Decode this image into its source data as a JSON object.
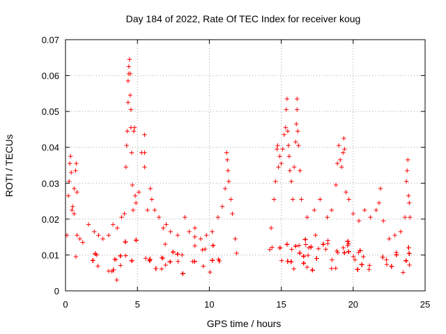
{
  "chart_data": {
    "type": "scatter",
    "title": "Day 184 of 2022, Rate Of TEC Index for receiver koug",
    "xlabel": "GPS time / hours",
    "ylabel": "ROTI / TECUs",
    "xlim": [
      0,
      25
    ],
    "ylim": [
      0,
      0.07
    ],
    "x_ticks": [
      "0",
      "5",
      "10",
      "15",
      "20",
      "25"
    ],
    "y_ticks": [
      "0",
      "0.01",
      "0.02",
      "0.03",
      "0.04",
      "0.05",
      "0.06",
      "0.07"
    ],
    "grid": true,
    "marker": "+",
    "color": "#ff0000",
    "data_gap_hours": [
      12.0,
      14.2
    ],
    "series": [
      {
        "points": [
          [
            0.1,
            0.0155
          ],
          [
            0.2,
            0.0265
          ],
          [
            0.25,
            0.0305
          ],
          [
            0.3,
            0.0355
          ],
          [
            0.35,
            0.0375
          ],
          [
            0.4,
            0.033
          ],
          [
            0.45,
            0.0225
          ],
          [
            0.5,
            0.0235
          ],
          [
            0.6,
            0.0215
          ],
          [
            0.6,
            0.0285
          ],
          [
            0.7,
            0.0335
          ],
          [
            0.75,
            0.0355
          ],
          [
            0.8,
            0.0275
          ],
          [
            0.8,
            0.0155
          ],
          [
            1.0,
            0.0145
          ],
          [
            1.2,
            0.0135
          ],
          [
            1.6,
            0.0185
          ],
          [
            2.0,
            0.0165
          ],
          [
            2.3,
            0.0155
          ],
          [
            2.6,
            0.0145
          ],
          [
            3.0,
            0.0155
          ],
          [
            3.3,
            0.0185
          ],
          [
            3.6,
            0.0175
          ],
          [
            3.9,
            0.0205
          ],
          [
            4.1,
            0.0215
          ],
          [
            4.2,
            0.0345
          ],
          [
            4.25,
            0.0405
          ],
          [
            4.3,
            0.0445
          ],
          [
            4.35,
            0.0525
          ],
          [
            4.35,
            0.0585
          ],
          [
            4.4,
            0.0605
          ],
          [
            4.4,
            0.0625
          ],
          [
            4.45,
            0.0645
          ],
          [
            4.5,
            0.0605
          ],
          [
            4.5,
            0.0545
          ],
          [
            4.55,
            0.0505
          ],
          [
            4.55,
            0.0455
          ],
          [
            4.6,
            0.0385
          ],
          [
            4.65,
            0.0295
          ],
          [
            4.7,
            0.0225
          ],
          [
            4.75,
            0.0445
          ],
          [
            4.8,
            0.0455
          ],
          [
            4.85,
            0.0265
          ],
          [
            4.9,
            0.0245
          ],
          [
            5.1,
            0.0275
          ],
          [
            5.3,
            0.0385
          ],
          [
            5.5,
            0.0385
          ],
          [
            5.5,
            0.0435
          ],
          [
            5.5,
            0.0345
          ],
          [
            5.7,
            0.0225
          ],
          [
            5.9,
            0.0285
          ],
          [
            6.0,
            0.0255
          ],
          [
            6.2,
            0.0225
          ],
          [
            6.5,
            0.0205
          ],
          [
            6.8,
            0.0175
          ],
          [
            7.0,
            0.0185
          ],
          [
            7.3,
            0.0165
          ],
          [
            7.8,
            0.0155
          ],
          [
            8.3,
            0.0205
          ],
          [
            8.6,
            0.0165
          ],
          [
            9.0,
            0.0175
          ],
          [
            9.4,
            0.0145
          ],
          [
            9.8,
            0.0155
          ],
          [
            10.2,
            0.0165
          ],
          [
            10.6,
            0.0205
          ],
          [
            10.9,
            0.0235
          ],
          [
            11.1,
            0.0285
          ],
          [
            11.2,
            0.0385
          ],
          [
            11.25,
            0.0365
          ],
          [
            11.3,
            0.0335
          ],
          [
            11.35,
            0.0305
          ],
          [
            11.5,
            0.0255
          ],
          [
            11.6,
            0.0215
          ],
          [
            11.8,
            0.0145
          ],
          [
            11.9,
            0.0105
          ],
          [
            14.2,
            0.0115
          ],
          [
            14.3,
            0.0175
          ],
          [
            14.5,
            0.0255
          ],
          [
            14.6,
            0.0305
          ],
          [
            14.7,
            0.0395
          ],
          [
            14.75,
            0.0405
          ],
          [
            14.8,
            0.0345
          ],
          [
            14.9,
            0.0375
          ],
          [
            15.0,
            0.0355
          ],
          [
            15.1,
            0.0395
          ],
          [
            15.2,
            0.0435
          ],
          [
            15.3,
            0.0455
          ],
          [
            15.35,
            0.0505
          ],
          [
            15.4,
            0.0535
          ],
          [
            15.45,
            0.0445
          ],
          [
            15.5,
            0.0405
          ],
          [
            15.55,
            0.0375
          ],
          [
            15.6,
            0.0335
          ],
          [
            15.7,
            0.0305
          ],
          [
            15.8,
            0.0255
          ],
          [
            15.9,
            0.0345
          ],
          [
            16.0,
            0.0415
          ],
          [
            16.05,
            0.0465
          ],
          [
            16.1,
            0.0505
          ],
          [
            16.1,
            0.0535
          ],
          [
            16.15,
            0.0445
          ],
          [
            16.2,
            0.0405
          ],
          [
            16.3,
            0.0335
          ],
          [
            16.4,
            0.0255
          ],
          [
            16.8,
            0.0205
          ],
          [
            17.3,
            0.0225
          ],
          [
            17.7,
            0.0255
          ],
          [
            18.2,
            0.0205
          ],
          [
            18.5,
            0.0225
          ],
          [
            18.8,
            0.0295
          ],
          [
            18.9,
            0.0355
          ],
          [
            19.0,
            0.0405
          ],
          [
            19.1,
            0.0365
          ],
          [
            19.2,
            0.0345
          ],
          [
            19.3,
            0.0385
          ],
          [
            19.35,
            0.0425
          ],
          [
            19.4,
            0.0395
          ],
          [
            19.5,
            0.0275
          ],
          [
            19.7,
            0.0255
          ],
          [
            20.0,
            0.0215
          ],
          [
            20.4,
            0.0195
          ],
          [
            20.8,
            0.0225
          ],
          [
            21.2,
            0.0205
          ],
          [
            21.6,
            0.0225
          ],
          [
            21.8,
            0.0245
          ],
          [
            21.9,
            0.0285
          ],
          [
            22.1,
            0.0195
          ],
          [
            22.5,
            0.0145
          ],
          [
            22.9,
            0.0155
          ],
          [
            23.3,
            0.0165
          ],
          [
            23.6,
            0.0205
          ],
          [
            23.7,
            0.0305
          ],
          [
            23.75,
            0.0335
          ],
          [
            23.8,
            0.0365
          ],
          [
            23.85,
            0.0265
          ],
          [
            23.9,
            0.0245
          ],
          [
            23.95,
            0.0205
          ]
        ]
      }
    ]
  }
}
